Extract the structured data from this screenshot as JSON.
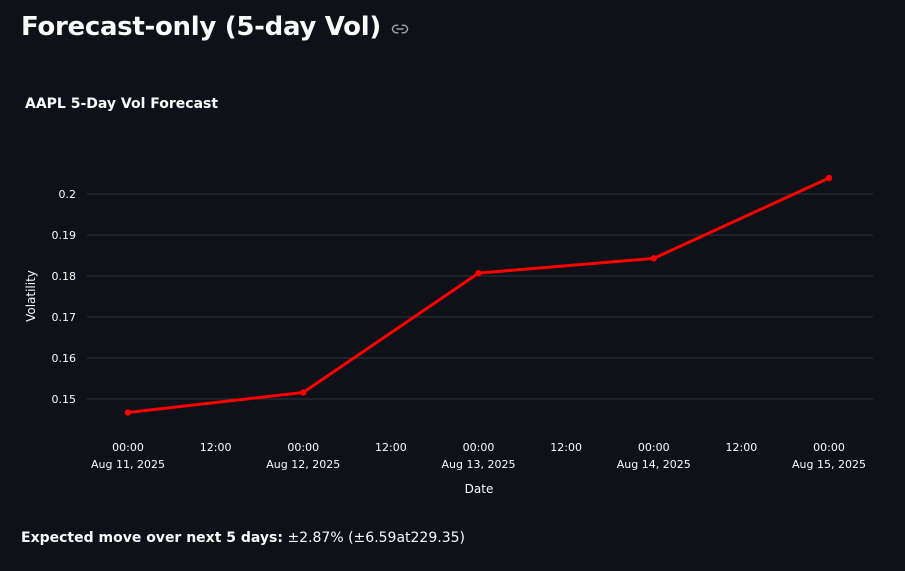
{
  "page": {
    "title": "Forecast-only (5-day Vol)",
    "link_icon": "link-icon"
  },
  "chart_data": {
    "type": "line",
    "title": "AAPL 5-Day Vol Forecast",
    "xlabel": "Date",
    "ylabel": "Volatility",
    "x": [
      "2025-08-11",
      "2025-08-12",
      "2025-08-13",
      "2025-08-14",
      "2025-08-15"
    ],
    "series": [
      {
        "values": [
          0.1467,
          0.1516,
          0.1807,
          0.1843,
          0.2039
        ],
        "color": "#ff0000"
      }
    ],
    "yticks": [
      "0.15",
      "0.16",
      "0.17",
      "0.18",
      "0.19",
      "0.2"
    ],
    "ylim": [
      0.14,
      0.21
    ],
    "xtick_labels": [
      {
        "time": "00:00",
        "date": "Aug 11, 2025"
      },
      {
        "time": "12:00",
        "date": ""
      },
      {
        "time": "00:00",
        "date": "Aug 12, 2025"
      },
      {
        "time": "12:00",
        "date": ""
      },
      {
        "time": "00:00",
        "date": "Aug 13, 2025"
      },
      {
        "time": "12:00",
        "date": ""
      },
      {
        "time": "00:00",
        "date": "Aug 14, 2025"
      },
      {
        "time": "12:00",
        "date": ""
      },
      {
        "time": "00:00",
        "date": "Aug 15, 2025"
      }
    ],
    "grid": "horizontal"
  },
  "footer": {
    "label": "Expected move over next 5 days:",
    "value": "±2.87% (±6.59at229.35)"
  }
}
